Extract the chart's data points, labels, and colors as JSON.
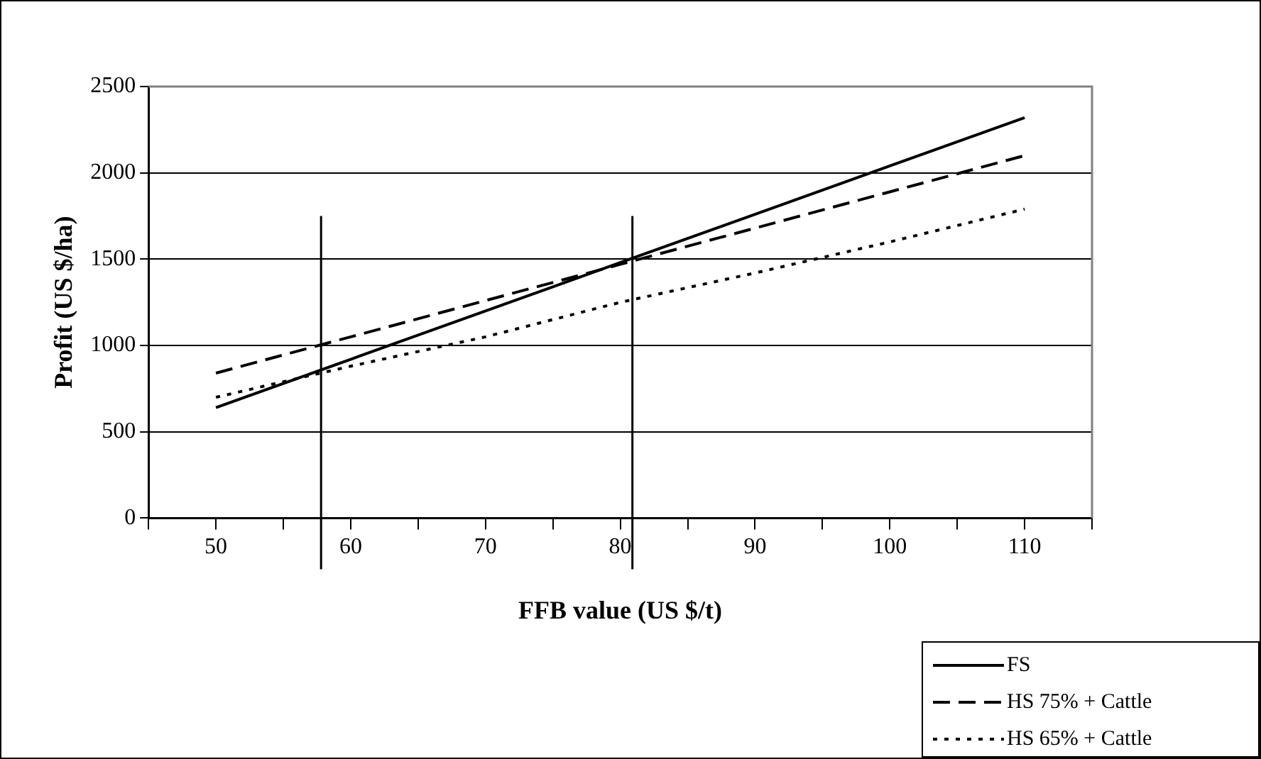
{
  "chart_data": {
    "type": "line",
    "xlabel": "FFB value (US $/t)",
    "ylabel": "Profit (US $/ha)",
    "x": [
      50,
      60,
      70,
      80,
      90,
      100,
      110
    ],
    "series": [
      {
        "name": "FS",
        "color": "#000000",
        "line_style": "solid",
        "values": [
          640,
          920,
          1200,
          1480,
          1760,
          2040,
          2320
        ]
      },
      {
        "name": "HS 75% + Cattle",
        "color": "#000000",
        "line_style": "dashed",
        "values": [
          840,
          1050,
          1260,
          1470,
          1680,
          1890,
          2100
        ]
      },
      {
        "name": "HS 65% + Cattle",
        "color": "#000000",
        "line_style": "dotted",
        "values": [
          700,
          880,
          1050,
          1250,
          1420,
          1600,
          1790
        ]
      }
    ],
    "xlim": [
      45,
      115
    ],
    "xticks": [
      {
        "value": 45,
        "label": null
      },
      50,
      {
        "value": 55,
        "label": null
      },
      60,
      {
        "value": 65,
        "label": null
      },
      70,
      {
        "value": 75,
        "label": null
      },
      80,
      {
        "value": 85,
        "label": null
      },
      90,
      {
        "value": 95,
        "label": null
      },
      100,
      {
        "value": 105,
        "label": null
      },
      110,
      {
        "value": 115,
        "label": null
      }
    ],
    "ylim": [
      0,
      2500
    ],
    "yticks": [
      0,
      500,
      1000,
      1500,
      2000,
      2500
    ],
    "ref_lines": [
      {
        "axis": "x",
        "value": 57.8
      },
      {
        "axis": "x",
        "value": 80.9
      }
    ],
    "grid": "y",
    "legend": "bottom right",
    "marker": "none"
  }
}
